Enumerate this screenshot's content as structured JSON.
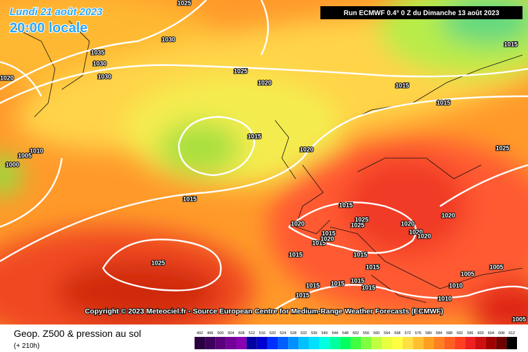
{
  "header": {
    "date": "Lundi 21 août 2023",
    "time": "20:00 locale",
    "run": "Run ECMWF 0.4° 0 Z du Dimanche 13 août 2023"
  },
  "copyright": "Copyright © 2023 Meteociel.fr - Source European Centre for Medium-Range Weather Forecasts (ECMWF)",
  "footer": {
    "title": "Geop. Z500 & pression au sol",
    "lead": "(+ 210h)"
  },
  "isobar_labels": [
    "1025",
    "1035",
    "1030",
    "1030",
    "1030",
    "1020",
    "1025",
    "1020",
    "1015",
    "1015",
    "1015",
    "1015",
    "1010",
    "1005",
    "1000",
    "1020",
    "1025",
    "1015",
    "1015",
    "1025",
    "1025",
    "1020",
    "1020",
    "1020",
    "1015",
    "1015",
    "1020",
    "1020",
    "1020",
    "1015",
    "1015",
    "1015",
    "1025",
    "1005",
    "1005",
    "1010",
    "1015",
    "1015",
    "1015",
    "1015",
    "1015",
    "1010",
    "1005"
  ],
  "scale": {
    "items": [
      {
        "label": "492",
        "color": "#2a0040"
      },
      {
        "label": "496",
        "color": "#3d005c"
      },
      {
        "label": "500",
        "color": "#5a007a"
      },
      {
        "label": "504",
        "color": "#700098"
      },
      {
        "label": "508",
        "color": "#8a00b0"
      },
      {
        "label": "512",
        "color": "#0000a0"
      },
      {
        "label": "516",
        "color": "#0000d0"
      },
      {
        "label": "520",
        "color": "#0030ff"
      },
      {
        "label": "524",
        "color": "#0060ff"
      },
      {
        "label": "528",
        "color": "#0090ff"
      },
      {
        "label": "532",
        "color": "#00c0ff"
      },
      {
        "label": "536",
        "color": "#00e0ff"
      },
      {
        "label": "540",
        "color": "#00ffe0"
      },
      {
        "label": "544",
        "color": "#00ffa0"
      },
      {
        "label": "548",
        "color": "#00ff60"
      },
      {
        "label": "552",
        "color": "#40ff40"
      },
      {
        "label": "556",
        "color": "#80ff40"
      },
      {
        "label": "560",
        "color": "#c0ff40"
      },
      {
        "label": "564",
        "color": "#e8ff40"
      },
      {
        "label": "568",
        "color": "#ffff40"
      },
      {
        "label": "572",
        "color": "#ffe040"
      },
      {
        "label": "576",
        "color": "#ffc030"
      },
      {
        "label": "580",
        "color": "#ffa020"
      },
      {
        "label": "584",
        "color": "#ff8020"
      },
      {
        "label": "588",
        "color": "#ff6020"
      },
      {
        "label": "592",
        "color": "#ff4020"
      },
      {
        "label": "596",
        "color": "#ee2020"
      },
      {
        "label": "600",
        "color": "#cc1010"
      },
      {
        "label": "604",
        "color": "#a00000"
      },
      {
        "label": "608",
        "color": "#700000"
      },
      {
        "label": "612",
        "color": "#000000"
      }
    ]
  }
}
